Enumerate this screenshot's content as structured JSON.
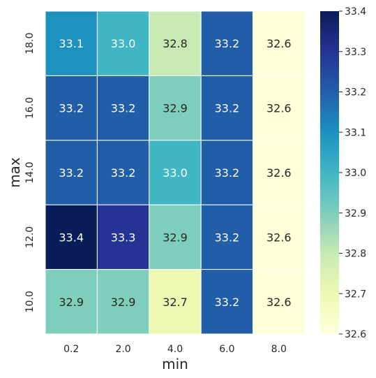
{
  "chart_data": {
    "type": "heatmap",
    "title": "",
    "xlabel": "min",
    "ylabel": "max",
    "x_categories": [
      "0.2",
      "2.0",
      "4.0",
      "6.0",
      "8.0"
    ],
    "y_categories": [
      "18.0",
      "16.0",
      "14.0",
      "12.0",
      "10.0"
    ],
    "values": [
      [
        33.1,
        33.0,
        32.8,
        33.2,
        32.6
      ],
      [
        33.2,
        33.2,
        32.9,
        33.2,
        32.6
      ],
      [
        33.2,
        33.2,
        33.0,
        33.2,
        32.6
      ],
      [
        33.4,
        33.3,
        32.9,
        33.2,
        32.6
      ],
      [
        32.9,
        32.9,
        32.7,
        33.2,
        32.6
      ]
    ],
    "value_labels": [
      [
        "33.1",
        "33.0",
        "32.8",
        "33.2",
        "32.6"
      ],
      [
        "33.2",
        "33.2",
        "32.9",
        "33.2",
        "32.6"
      ],
      [
        "33.2",
        "33.2",
        "33.0",
        "33.2",
        "32.6"
      ],
      [
        "33.4",
        "33.3",
        "32.9",
        "33.2",
        "32.6"
      ],
      [
        "32.9",
        "32.9",
        "32.7",
        "33.2",
        "32.6"
      ]
    ],
    "colorbar": {
      "colormap": "YlGnBu",
      "vmin": 32.6,
      "vmax": 33.4,
      "ticks": [
        "32.6",
        "32.7",
        "32.8",
        "32.9",
        "33.0",
        "33.1",
        "33.2",
        "33.3",
        "33.4"
      ]
    },
    "colors": {
      "ylgnbu_stops": [
        "#ffffd9",
        "#edf8b1",
        "#c7e9b4",
        "#7fcdbb",
        "#41b6c4",
        "#1d91c0",
        "#225ea8",
        "#253494",
        "#081d58"
      ],
      "cell_border": "#ffffff",
      "text_dark": "#262626",
      "text_light": "#ffffff"
    }
  }
}
